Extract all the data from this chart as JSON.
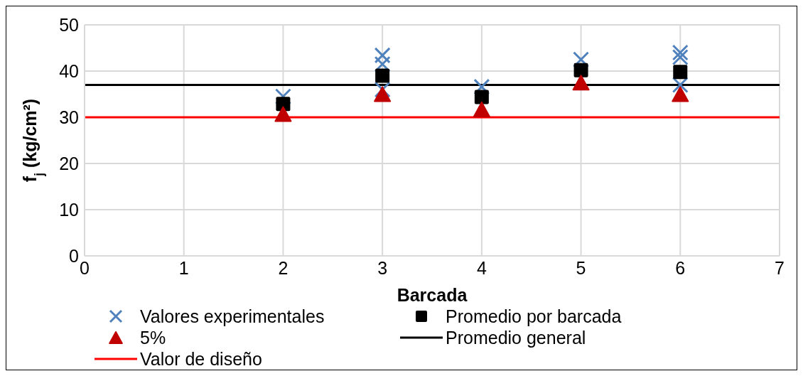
{
  "chart_data": {
    "type": "scatter",
    "xlabel": "Barcada",
    "ylabel": "f$_{j}$ (kg/cm²)",
    "xlim": [
      0,
      7
    ],
    "xticks": [
      0,
      1,
      2,
      3,
      4,
      5,
      6,
      7
    ],
    "ylim": [
      0,
      50
    ],
    "yticks": [
      0,
      10,
      20,
      30,
      40,
      50
    ],
    "grid": true,
    "legend": "bottom",
    "series": [
      {
        "name": "Valores experimentales",
        "marker": "cross",
        "color": "#4f81bd",
        "x": [
          2,
          3,
          3,
          3,
          4,
          5,
          6,
          6,
          6
        ],
        "values": [
          34.5,
          43.4,
          41.5,
          36,
          36.6,
          42.5,
          44,
          43,
          37
        ]
      },
      {
        "name": "Promedio por barcada",
        "marker": "square",
        "color": "#000000",
        "x": [
          2,
          3,
          4,
          5,
          6
        ],
        "values": [
          32.9,
          39,
          34.4,
          40.2,
          39.8
        ]
      },
      {
        "name": "5%",
        "marker": "triangle",
        "color": "#c00000",
        "x": [
          2,
          3,
          4,
          5,
          6
        ],
        "values": [
          30.7,
          35,
          31.7,
          37.5,
          35
        ]
      },
      {
        "name": "Promedio general",
        "type": "line",
        "color": "#000000",
        "x": [
          0,
          7
        ],
        "values": [
          37,
          37
        ]
      },
      {
        "name": "Valor de diseño",
        "type": "line",
        "color": "#ff0000",
        "x": [
          0,
          7
        ],
        "values": [
          30,
          30
        ]
      }
    ]
  }
}
